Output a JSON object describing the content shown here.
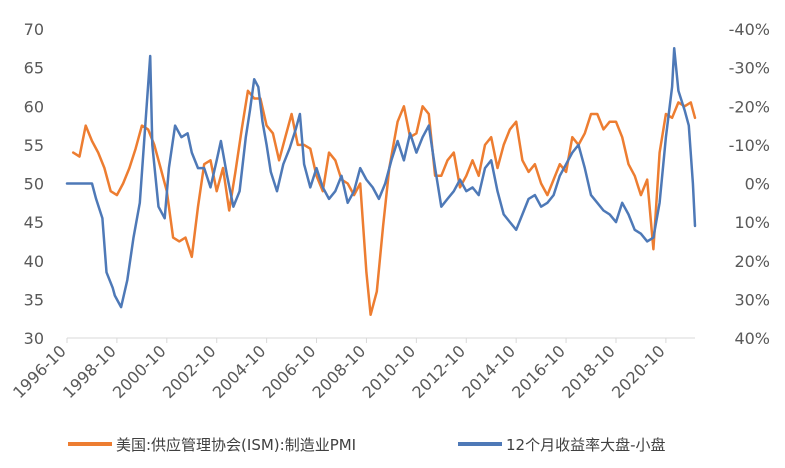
{
  "chart_data": {
    "type": "line",
    "title": "",
    "grid": false,
    "legend_position": "bottom",
    "x_axis": {
      "ticks": [
        "1996-10",
        "1998-10",
        "2000-10",
        "2002-10",
        "2004-10",
        "2006-10",
        "2008-10",
        "2010-10",
        "2012-10",
        "2014-10",
        "2016-10",
        "2018-10",
        "2020-10"
      ],
      "range": [
        "1996-10",
        "2021-12"
      ]
    },
    "y_left": {
      "ticks": [
        "30",
        "35",
        "40",
        "45",
        "50",
        "55",
        "60",
        "65",
        "70"
      ],
      "range": [
        30,
        70
      ]
    },
    "y_right": {
      "ticks": [
        "-40%",
        "-30%",
        "-20%",
        "-10%",
        "0%",
        "10%",
        "20%",
        "30%",
        "40%"
      ],
      "range": [
        -0.4,
        0.4
      ],
      "reversed": true
    },
    "series": [
      {
        "name": "美国:供应管理协会(ISM):制造业PMI",
        "axis": "left",
        "color": "#ED7D31",
        "points": [
          [
            "1997-01",
            54
          ],
          [
            "1997-04",
            53.5
          ],
          [
            "1997-07",
            57.5
          ],
          [
            "1997-10",
            55.5
          ],
          [
            "1998-01",
            54
          ],
          [
            "1998-04",
            52
          ],
          [
            "1998-07",
            49
          ],
          [
            "1998-10",
            48.5
          ],
          [
            "1999-01",
            50
          ],
          [
            "1999-04",
            52
          ],
          [
            "1999-07",
            54.5
          ],
          [
            "1999-10",
            57.5
          ],
          [
            "2000-01",
            57
          ],
          [
            "2000-04",
            55
          ],
          [
            "2000-07",
            52
          ],
          [
            "2000-10",
            49
          ],
          [
            "2001-01",
            43
          ],
          [
            "2001-04",
            42.5
          ],
          [
            "2001-07",
            43
          ],
          [
            "2001-10",
            40.5
          ],
          [
            "2002-01",
            47
          ],
          [
            "2002-04",
            52.5
          ],
          [
            "2002-07",
            53
          ],
          [
            "2002-10",
            49
          ],
          [
            "2003-01",
            52
          ],
          [
            "2003-04",
            46.5
          ],
          [
            "2003-07",
            51.5
          ],
          [
            "2003-10",
            57
          ],
          [
            "2004-01",
            62
          ],
          [
            "2004-04",
            61
          ],
          [
            "2004-07",
            61
          ],
          [
            "2004-10",
            57.5
          ],
          [
            "2005-01",
            56.5
          ],
          [
            "2005-04",
            53
          ],
          [
            "2005-07",
            56
          ],
          [
            "2005-10",
            59
          ],
          [
            "2006-01",
            55
          ],
          [
            "2006-04",
            55
          ],
          [
            "2006-07",
            54.5
          ],
          [
            "2006-10",
            51
          ],
          [
            "2007-01",
            49
          ],
          [
            "2007-04",
            54
          ],
          [
            "2007-07",
            53
          ],
          [
            "2007-10",
            50.5
          ],
          [
            "2008-01",
            50
          ],
          [
            "2008-04",
            48.5
          ],
          [
            "2008-07",
            50
          ],
          [
            "2008-10",
            38.5
          ],
          [
            "2008-12",
            33
          ],
          [
            "2009-03",
            36
          ],
          [
            "2009-06",
            44.5
          ],
          [
            "2009-09",
            52
          ],
          [
            "2010-01",
            58
          ],
          [
            "2010-04",
            60
          ],
          [
            "2010-07",
            56
          ],
          [
            "2010-10",
            56.5
          ],
          [
            "2011-01",
            60
          ],
          [
            "2011-04",
            59
          ],
          [
            "2011-07",
            51
          ],
          [
            "2011-10",
            51
          ],
          [
            "2012-01",
            53
          ],
          [
            "2012-04",
            54
          ],
          [
            "2012-07",
            49.5
          ],
          [
            "2012-10",
            51
          ],
          [
            "2013-01",
            53
          ],
          [
            "2013-04",
            51
          ],
          [
            "2013-07",
            55
          ],
          [
            "2013-10",
            56
          ],
          [
            "2014-01",
            52
          ],
          [
            "2014-04",
            55
          ],
          [
            "2014-07",
            57
          ],
          [
            "2014-10",
            58
          ],
          [
            "2015-01",
            53
          ],
          [
            "2015-04",
            51.5
          ],
          [
            "2015-07",
            52.5
          ],
          [
            "2015-10",
            50
          ],
          [
            "2016-01",
            48.5
          ],
          [
            "2016-04",
            50.5
          ],
          [
            "2016-07",
            52.5
          ],
          [
            "2016-10",
            51.5
          ],
          [
            "2017-01",
            56
          ],
          [
            "2017-04",
            55
          ],
          [
            "2017-07",
            56.5
          ],
          [
            "2017-10",
            59
          ],
          [
            "2018-01",
            59
          ],
          [
            "2018-04",
            57
          ],
          [
            "2018-07",
            58
          ],
          [
            "2018-10",
            58
          ],
          [
            "2019-01",
            56
          ],
          [
            "2019-04",
            52.5
          ],
          [
            "2019-07",
            51
          ],
          [
            "2019-10",
            48.5
          ],
          [
            "2020-01",
            50.5
          ],
          [
            "2020-04",
            41.5
          ],
          [
            "2020-07",
            54
          ],
          [
            "2020-10",
            59
          ],
          [
            "2021-01",
            58.5
          ],
          [
            "2021-04",
            60.5
          ],
          [
            "2021-07",
            60
          ],
          [
            "2021-10",
            60.5
          ],
          [
            "2021-12",
            58.5
          ]
        ]
      },
      {
        "name": "12个月收益率大盘-小盘",
        "axis": "right",
        "color": "#4E79B7",
        "points": [
          [
            "1996-10",
            0
          ],
          [
            "1997-10",
            0
          ],
          [
            "1997-12",
            0.04
          ],
          [
            "1998-03",
            0.09
          ],
          [
            "1998-05",
            0.23
          ],
          [
            "1998-08",
            0.27
          ],
          [
            "1998-09",
            0.29
          ],
          [
            "1998-12",
            0.32
          ],
          [
            "1999-03",
            0.25
          ],
          [
            "1999-06",
            0.14
          ],
          [
            "1999-09",
            0.05
          ],
          [
            "1999-11",
            -0.1
          ],
          [
            "2000-02",
            -0.33
          ],
          [
            "2000-03",
            -0.1
          ],
          [
            "2000-06",
            0.06
          ],
          [
            "2000-09",
            0.09
          ],
          [
            "2000-11",
            -0.04
          ],
          [
            "2001-02",
            -0.15
          ],
          [
            "2001-05",
            -0.12
          ],
          [
            "2001-08",
            -0.13
          ],
          [
            "2001-10",
            -0.08
          ],
          [
            "2002-01",
            -0.04
          ],
          [
            "2002-04",
            -0.04
          ],
          [
            "2002-07",
            0.01
          ],
          [
            "2002-10",
            -0.06
          ],
          [
            "2002-12",
            -0.11
          ],
          [
            "2003-03",
            -0.02
          ],
          [
            "2003-06",
            0.06
          ],
          [
            "2003-09",
            0.02
          ],
          [
            "2003-12",
            -0.12
          ],
          [
            "2004-02",
            -0.19
          ],
          [
            "2004-04",
            -0.27
          ],
          [
            "2004-06",
            -0.25
          ],
          [
            "2004-08",
            -0.16
          ],
          [
            "2004-10",
            -0.1
          ],
          [
            "2004-12",
            -0.03
          ],
          [
            "2005-03",
            0.02
          ],
          [
            "2005-06",
            -0.05
          ],
          [
            "2005-09",
            -0.09
          ],
          [
            "2005-12",
            -0.14
          ],
          [
            "2006-02",
            -0.18
          ],
          [
            "2006-04",
            -0.05
          ],
          [
            "2006-07",
            0.01
          ],
          [
            "2006-10",
            -0.04
          ],
          [
            "2007-01",
            0.01
          ],
          [
            "2007-04",
            0.04
          ],
          [
            "2007-07",
            0.02
          ],
          [
            "2007-10",
            -0.02
          ],
          [
            "2008-01",
            0.05
          ],
          [
            "2008-04",
            0.02
          ],
          [
            "2008-07",
            -0.04
          ],
          [
            "2008-10",
            -0.01
          ],
          [
            "2009-01",
            0.01
          ],
          [
            "2009-04",
            0.04
          ],
          [
            "2009-07",
            0
          ],
          [
            "2009-10",
            -0.06
          ],
          [
            "2010-01",
            -0.11
          ],
          [
            "2010-04",
            -0.06
          ],
          [
            "2010-07",
            -0.13
          ],
          [
            "2010-10",
            -0.08
          ],
          [
            "2011-01",
            -0.12
          ],
          [
            "2011-04",
            -0.15
          ],
          [
            "2011-07",
            -0.04
          ],
          [
            "2011-10",
            0.06
          ],
          [
            "2012-01",
            0.04
          ],
          [
            "2012-04",
            0.02
          ],
          [
            "2012-07",
            -0.01
          ],
          [
            "2012-10",
            0.02
          ],
          [
            "2013-01",
            0.01
          ],
          [
            "2013-04",
            0.03
          ],
          [
            "2013-07",
            -0.04
          ],
          [
            "2013-10",
            -0.06
          ],
          [
            "2014-01",
            0.02
          ],
          [
            "2014-04",
            0.08
          ],
          [
            "2014-07",
            0.1
          ],
          [
            "2014-10",
            0.12
          ],
          [
            "2015-01",
            0.08
          ],
          [
            "2015-04",
            0.04
          ],
          [
            "2015-07",
            0.03
          ],
          [
            "2015-10",
            0.06
          ],
          [
            "2016-01",
            0.05
          ],
          [
            "2016-04",
            0.03
          ],
          [
            "2016-07",
            -0.02
          ],
          [
            "2016-10",
            -0.05
          ],
          [
            "2017-01",
            -0.08
          ],
          [
            "2017-04",
            -0.1
          ],
          [
            "2017-07",
            -0.04
          ],
          [
            "2017-10",
            0.03
          ],
          [
            "2018-01",
            0.05
          ],
          [
            "2018-04",
            0.07
          ],
          [
            "2018-07",
            0.08
          ],
          [
            "2018-10",
            0.1
          ],
          [
            "2019-01",
            0.05
          ],
          [
            "2019-04",
            0.08
          ],
          [
            "2019-07",
            0.12
          ],
          [
            "2019-10",
            0.13
          ],
          [
            "2020-01",
            0.15
          ],
          [
            "2020-04",
            0.14
          ],
          [
            "2020-07",
            0.05
          ],
          [
            "2020-10",
            -0.12
          ],
          [
            "2021-01",
            -0.25
          ],
          [
            "2021-02",
            -0.35
          ],
          [
            "2021-04",
            -0.24
          ],
          [
            "2021-07",
            -0.19
          ],
          [
            "2021-09",
            -0.15
          ],
          [
            "2021-11",
            0
          ],
          [
            "2021-12",
            0.11
          ]
        ]
      }
    ]
  }
}
